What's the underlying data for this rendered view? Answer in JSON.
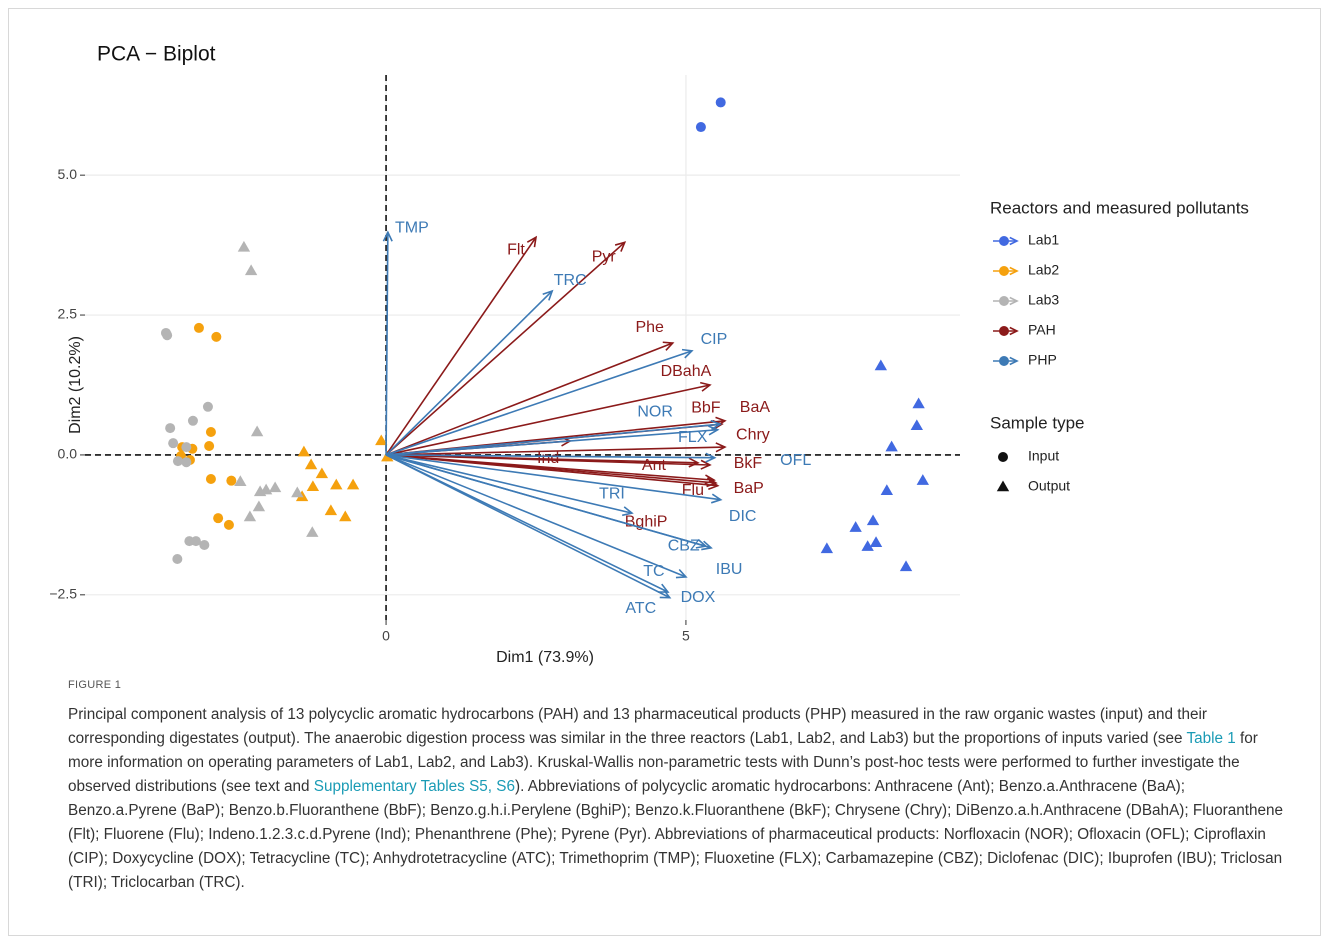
{
  "chart_data": {
    "type": "biplot",
    "title": "PCA − Biplot",
    "x_label": "Dim1 (73.9%)",
    "y_label": "Dim2 (10.2%)",
    "xlim": [
      -5.02,
      9.57
    ],
    "ylim": [
      -2.95,
      6.79
    ],
    "xticks": [
      0,
      5
    ],
    "yticks": [
      {
        "value": -2.5,
        "label": "−2.5"
      },
      {
        "value": 0,
        "label": "0.0"
      },
      {
        "value": 2.5,
        "label": "2.5"
      },
      {
        "value": 5,
        "label": "5.0"
      }
    ],
    "grid": true,
    "hline": 0,
    "vline": 0,
    "legend_title": "Reactors and measured pollutants",
    "shape_legend": {
      "title": "Sample type",
      "items": [
        "Input",
        "Output"
      ]
    },
    "series": [
      {
        "name": "Lab1",
        "color": "#4169e1",
        "input": {
          "x": [
            5.25,
            5.58
          ],
          "y": [
            5.86,
            6.3
          ]
        },
        "output": {
          "x": [
            8.25,
            8.88,
            8.85,
            8.43,
            8.95,
            8.35,
            8.12,
            7.83,
            8.17,
            8.03,
            7.35,
            8.67
          ],
          "y": [
            1.59,
            0.91,
            0.52,
            0.14,
            -0.46,
            -0.64,
            -1.18,
            -1.3,
            -1.57,
            -1.64,
            -1.68,
            -2.0
          ]
        }
      },
      {
        "name": "Lab2",
        "color": "#f5a10e",
        "input": {
          "x": [
            -3.12,
            -2.83,
            -2.92,
            -2.95,
            -3.4,
            -3.23,
            -3.42,
            -3.27,
            -2.92,
            -2.58,
            -2.8,
            -2.62
          ],
          "y": [
            2.27,
            2.11,
            0.41,
            0.16,
            0.14,
            0.11,
            -0.02,
            -0.09,
            -0.43,
            -0.46,
            -1.13,
            -1.25
          ]
        },
        "output": {
          "x": [
            -0.08,
            0.02,
            -1.37,
            -1.25,
            -1.07,
            -1.22,
            -1.4,
            -0.83,
            -0.55,
            -0.92,
            -0.68
          ],
          "y": [
            0.25,
            -0.04,
            0.05,
            -0.18,
            -0.34,
            -0.57,
            -0.75,
            -0.54,
            -0.54,
            -1.0,
            -1.11
          ]
        }
      },
      {
        "name": "Lab3",
        "color": "#b4b4b4",
        "input": {
          "x": [
            -3.67,
            -3.65,
            -2.97,
            -3.22,
            -3.6,
            -3.55,
            -3.33,
            -3.47,
            -3.33,
            -3.28,
            -3.17,
            -3.03,
            -3.48
          ],
          "y": [
            2.18,
            2.14,
            0.86,
            0.61,
            0.48,
            0.21,
            0.14,
            -0.11,
            -0.13,
            -1.54,
            -1.54,
            -1.61,
            -1.86
          ]
        },
        "output": {
          "x": [
            -2.37,
            -2.25,
            -2.15,
            -2.43,
            -2.1,
            -2.0,
            -1.85,
            -2.12,
            -2.27,
            -1.48,
            -1.23
          ],
          "y": [
            3.71,
            3.29,
            0.41,
            -0.48,
            -0.66,
            -0.63,
            -0.59,
            -0.93,
            -1.11,
            -0.68,
            -1.39
          ]
        }
      },
      {
        "name": "PAH",
        "color": "#8b1a1a",
        "arrows": {
          "labels": [
            "Flt",
            "Pyr",
            "Phe",
            "DBahA",
            "BaA",
            "BbF",
            "Chry",
            "Ind",
            "Ant",
            "BkF",
            "Flu",
            "BaP",
            "BghiP"
          ],
          "x": [
            2.5,
            3.98,
            4.78,
            5.4,
            5.65,
            5.6,
            5.65,
            3.07,
            5.2,
            5.4,
            5.5,
            5.53,
            5.47
          ],
          "y": [
            3.89,
            3.8,
            2.0,
            1.25,
            0.61,
            0.55,
            0.14,
            0.25,
            -0.14,
            -0.18,
            -0.5,
            -0.55,
            -0.45
          ]
        }
      },
      {
        "name": "PHP",
        "color": "#3d7ab5",
        "arrows": {
          "labels": [
            "TMP",
            "TRC",
            "CIP",
            "NOR",
            "FLX",
            "OFL",
            "DIC",
            "IBU",
            "CBZ",
            "TRI",
            "TC",
            "DOX",
            "ATC"
          ],
          "x": [
            0.03,
            2.77,
            5.1,
            5.57,
            5.53,
            5.48,
            5.58,
            5.42,
            5.33,
            4.1,
            5.0,
            4.7,
            4.73
          ],
          "y": [
            3.98,
            2.93,
            1.86,
            0.55,
            0.45,
            -0.05,
            -0.8,
            -1.66,
            -1.63,
            -1.04,
            -2.18,
            -2.45,
            -2.55
          ]
        }
      }
    ]
  },
  "caption": {
    "label": "FIGURE 1",
    "parts": [
      "Principal component analysis of 13 polycyclic aromatic hydrocarbons (PAH) and 13 pharmaceutical products (PHP) measured in the raw organic wastes (input) and their corresponding digestates (output). The anaerobic digestion process was similar in the three reactors (Lab1, Lab2, and Lab3) but the proportions of inputs varied (see ",
      "Table 1",
      " for more information on operating parameters of Lab1, Lab2, and Lab3). Kruskal-Wallis non-parametric tests with Dunn’s post-hoc tests were performed to further investigate the observed distributions (see text and ",
      "Supplementary Tables S5, S6",
      "). Abbreviations of polycyclic aromatic hydrocarbons: Anthracene (Ant); Benzo.a.Anthracene (BaA); Benzo.a.Pyrene (BaP); Benzo.b.Fluoranthene (BbF); Benzo.g.h.i.Perylene (BghiP); Benzo.k.Fluoranthene (BkF); Chrysene (Chry); DiBenzo.a.h.Anthracene (DBahA); Fluoranthene (Flt); Fluorene (Flu); Indeno.1.2.3.c.d.Pyrene (Ind); Phenanthrene (Phe); Pyrene (Pyr). Abbreviations of pharmaceutical products: Norfloxacin (NOR); Ofloxacin (OFL); Ciproflaxin (CIP); Doxycycline (DOX); Tetracycline (TC); Anhydrotetracycline (ATC); Trimethoprim (TMP); Fluoxetine (FLX); Carbamazepine (CBZ); Diclofenac (DIC); Ibuprofen (IBU); Triclosan (TRI); Triclocarban (TRC)."
    ]
  }
}
